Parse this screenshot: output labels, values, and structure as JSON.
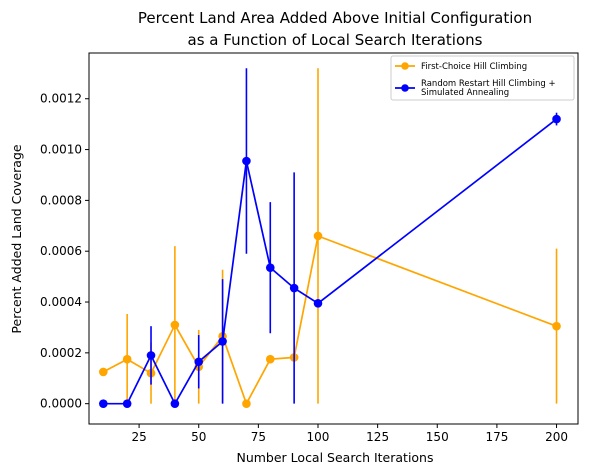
{
  "chart_data": {
    "type": "line",
    "title": "Percent Land Area Added Above Initial Configuration\nas a Function of Local Search Iterations",
    "xlabel": "Number Local Search Iterations",
    "ylabel": "Percent Added Land Coverage",
    "xlim": [
      4,
      209
    ],
    "ylim": [
      -8e-05,
      0.00138
    ],
    "xticks": [
      25,
      50,
      75,
      100,
      125,
      150,
      175,
      200
    ],
    "yticks": [
      0,
      0.0002,
      0.0004,
      0.0006,
      0.0008,
      0.001,
      0.0012
    ],
    "ytick_labels": [
      "0.0000",
      "0.0002",
      "0.0004",
      "0.0006",
      "0.0008",
      "0.0010",
      "0.0012"
    ],
    "legend_placement": "top-right",
    "grid": false,
    "series": [
      {
        "name": "First-Choice Hill Climbing",
        "color": "#FFA500",
        "x": [
          10,
          20,
          30,
          40,
          50,
          60,
          70,
          80,
          90,
          100,
          200
        ],
        "y": [
          0.000125,
          0.000175,
          0.00012,
          0.00031,
          0.000145,
          0.000265,
          0.0,
          0.000175,
          0.000182,
          0.00066,
          0.000305
        ],
        "yerr": [
          0,
          0.000178,
          0.00012,
          0.00031,
          0.000145,
          0.000262,
          0,
          0,
          0,
          0.00066,
          0.000305
        ]
      },
      {
        "name": "Random Restart Hill Climbing +\nSimulated Annealing",
        "color": "#0000FF",
        "x": [
          10,
          20,
          30,
          40,
          50,
          60,
          70,
          80,
          90,
          100,
          200
        ],
        "y": [
          0.0,
          0.0,
          0.00019,
          0.0,
          0.000165,
          0.000245,
          0.000955,
          0.000535,
          0.000455,
          0.000395,
          0.00112
        ],
        "yerr": [
          0,
          0,
          0.000115,
          0,
          0.000105,
          0.000245,
          0.000365,
          0.000258,
          0.000455,
          0,
          2.5e-05
        ]
      }
    ]
  }
}
